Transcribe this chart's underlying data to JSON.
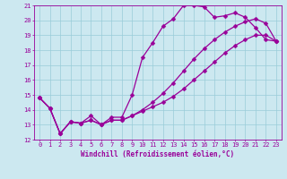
{
  "xlabel": "Windchill (Refroidissement éolien,°C)",
  "ylabel": "",
  "xlim": [
    -0.5,
    23.5
  ],
  "ylim": [
    12,
    21
  ],
  "xticks": [
    0,
    1,
    2,
    3,
    4,
    5,
    6,
    7,
    8,
    9,
    10,
    11,
    12,
    13,
    14,
    15,
    16,
    17,
    18,
    19,
    20,
    21,
    22,
    23
  ],
  "yticks": [
    12,
    13,
    14,
    15,
    16,
    17,
    18,
    19,
    20,
    21
  ],
  "bg_color": "#cce8f0",
  "grid_color": "#99ccd9",
  "line_color": "#990099",
  "line1_x": [
    0,
    1,
    2,
    3,
    4,
    5,
    6,
    7,
    8,
    9,
    10,
    11,
    12,
    13,
    14,
    15,
    16,
    17,
    18,
    19,
    20,
    21,
    22,
    23
  ],
  "line1_y": [
    14.8,
    14.1,
    12.4,
    13.2,
    13.1,
    13.6,
    13.0,
    13.5,
    13.5,
    15.0,
    17.5,
    18.5,
    19.6,
    20.1,
    21.0,
    21.0,
    20.9,
    20.2,
    20.3,
    20.5,
    20.2,
    19.5,
    18.7,
    18.6
  ],
  "line2_x": [
    0,
    1,
    2,
    3,
    4,
    5,
    6,
    7,
    8,
    9,
    10,
    11,
    12,
    13,
    14,
    15,
    16,
    17,
    18,
    19,
    20,
    21,
    22,
    23
  ],
  "line2_y": [
    14.8,
    14.1,
    12.4,
    13.2,
    13.1,
    13.3,
    13.0,
    13.3,
    13.3,
    13.6,
    13.9,
    14.2,
    14.5,
    14.9,
    15.4,
    16.0,
    16.6,
    17.2,
    17.8,
    18.3,
    18.7,
    19.0,
    19.0,
    18.6
  ],
  "line3_x": [
    0,
    1,
    2,
    3,
    4,
    5,
    6,
    7,
    8,
    9,
    10,
    11,
    12,
    13,
    14,
    15,
    16,
    17,
    18,
    19,
    20,
    21,
    22,
    23
  ],
  "line3_y": [
    14.8,
    14.1,
    12.4,
    13.2,
    13.1,
    13.3,
    13.0,
    13.3,
    13.3,
    13.6,
    14.0,
    14.5,
    15.1,
    15.8,
    16.6,
    17.4,
    18.1,
    18.7,
    19.2,
    19.6,
    19.9,
    20.1,
    19.8,
    18.6
  ],
  "tick_fontsize": 5.0,
  "xlabel_fontsize": 5.5,
  "marker_size": 2.5,
  "line_width": 0.9
}
